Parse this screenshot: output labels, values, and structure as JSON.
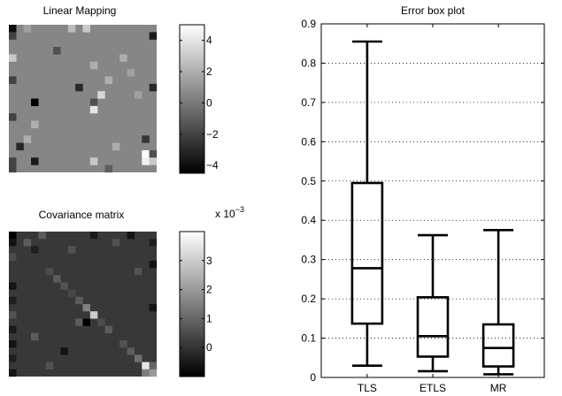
{
  "chart_data": [
    {
      "type": "heatmap",
      "title": "Linear Mapping",
      "rows": 20,
      "cols": 20,
      "vlim": [
        -4.5,
        5
      ],
      "colorbar_ticks": [
        -4,
        -2,
        0,
        2,
        4
      ],
      "colorbar_tick_labels": [
        "−4",
        "−2",
        "0",
        "2",
        "4"
      ],
      "colormap": "gray",
      "background_value": 0.5,
      "cells": [
        {
          "r": 0,
          "c": 0,
          "v": -4
        },
        {
          "r": 0,
          "c": 2,
          "v": 1.5
        },
        {
          "r": 0,
          "c": 8,
          "v": 2.5
        },
        {
          "r": 0,
          "c": 10,
          "v": 3
        },
        {
          "r": 1,
          "c": 0,
          "v": -2
        },
        {
          "r": 1,
          "c": 19,
          "v": -3.5
        },
        {
          "r": 3,
          "c": 6,
          "v": -1.5
        },
        {
          "r": 4,
          "c": 0,
          "v": 3
        },
        {
          "r": 4,
          "c": 15,
          "v": 2
        },
        {
          "r": 5,
          "c": 11,
          "v": 2
        },
        {
          "r": 6,
          "c": 16,
          "v": 1.5
        },
        {
          "r": 7,
          "c": 0,
          "v": -2
        },
        {
          "r": 7,
          "c": 13,
          "v": 2
        },
        {
          "r": 8,
          "c": 9,
          "v": -3
        },
        {
          "r": 8,
          "c": 19,
          "v": -3
        },
        {
          "r": 9,
          "c": 12,
          "v": 3.5
        },
        {
          "r": 9,
          "c": 17,
          "v": 1.5
        },
        {
          "r": 10,
          "c": 3,
          "v": -4.5
        },
        {
          "r": 10,
          "c": 11,
          "v": -1.5
        },
        {
          "r": 11,
          "c": 11,
          "v": 4
        },
        {
          "r": 12,
          "c": 0,
          "v": -2
        },
        {
          "r": 13,
          "c": 3,
          "v": 2
        },
        {
          "r": 15,
          "c": 2,
          "v": 2
        },
        {
          "r": 15,
          "c": 18,
          "v": -2.5
        },
        {
          "r": 16,
          "c": 1,
          "v": -3
        },
        {
          "r": 16,
          "c": 14,
          "v": 2
        },
        {
          "r": 17,
          "c": 18,
          "v": 5
        },
        {
          "r": 17,
          "c": 19,
          "v": -1.5
        },
        {
          "r": 18,
          "c": 0,
          "v": -2
        },
        {
          "r": 18,
          "c": 3,
          "v": -3.5
        },
        {
          "r": 18,
          "c": 11,
          "v": 3
        },
        {
          "r": 18,
          "c": 18,
          "v": 4.5
        },
        {
          "r": 18,
          "c": 19,
          "v": 3
        },
        {
          "r": 19,
          "c": 0,
          "v": -2
        },
        {
          "r": 19,
          "c": 13,
          "v": -1
        }
      ]
    },
    {
      "type": "heatmap",
      "title": "Covariance matrix",
      "rows": 20,
      "cols": 20,
      "vlim": [
        -1,
        4
      ],
      "colorbar_ticks": [
        0,
        1,
        2,
        3
      ],
      "colorbar_tick_labels": [
        "0",
        "1",
        "2",
        "3"
      ],
      "colorbar_exponent_base": "x 10",
      "colorbar_exponent": "−3",
      "colormap": "gray",
      "background_value": 0.1,
      "cells": [
        {
          "r": 0,
          "c": 0,
          "v": -1
        },
        {
          "r": 0,
          "c": 4,
          "v": 0.8
        },
        {
          "r": 0,
          "c": 11,
          "v": -0.5
        },
        {
          "r": 0,
          "c": 16,
          "v": -0.6
        },
        {
          "r": 1,
          "c": 0,
          "v": -0.6
        },
        {
          "r": 1,
          "c": 2,
          "v": 0.8
        },
        {
          "r": 1,
          "c": 14,
          "v": 0.6
        },
        {
          "r": 1,
          "c": 19,
          "v": -0.4
        },
        {
          "r": 2,
          "c": 3,
          "v": -0.4
        },
        {
          "r": 2,
          "c": 8,
          "v": 0.6
        },
        {
          "r": 3,
          "c": 0,
          "v": 0.5
        },
        {
          "r": 4,
          "c": 19,
          "v": -0.6
        },
        {
          "r": 5,
          "c": 5,
          "v": 0.5
        },
        {
          "r": 5,
          "c": 17,
          "v": 0.6
        },
        {
          "r": 6,
          "c": 6,
          "v": 0.8
        },
        {
          "r": 7,
          "c": 0,
          "v": -0.6
        },
        {
          "r": 7,
          "c": 7,
          "v": 0.6
        },
        {
          "r": 8,
          "c": 8,
          "v": 0.4
        },
        {
          "r": 9,
          "c": 0,
          "v": -0.4
        },
        {
          "r": 9,
          "c": 9,
          "v": 0.8
        },
        {
          "r": 10,
          "c": 10,
          "v": 1.5
        },
        {
          "r": 10,
          "c": 19,
          "v": -0.6
        },
        {
          "r": 11,
          "c": 0,
          "v": 0.6
        },
        {
          "r": 11,
          "c": 11,
          "v": 3
        },
        {
          "r": 12,
          "c": 9,
          "v": 0.8
        },
        {
          "r": 12,
          "c": 10,
          "v": -1
        },
        {
          "r": 12,
          "c": 12,
          "v": 0.5
        },
        {
          "r": 13,
          "c": 0,
          "v": -0.5
        },
        {
          "r": 13,
          "c": 13,
          "v": 0.8
        },
        {
          "r": 14,
          "c": 3,
          "v": 0.8
        },
        {
          "r": 15,
          "c": 0,
          "v": -0.6
        },
        {
          "r": 15,
          "c": 15,
          "v": 0.6
        },
        {
          "r": 16,
          "c": 7,
          "v": -0.6
        },
        {
          "r": 16,
          "c": 16,
          "v": 0.8
        },
        {
          "r": 17,
          "c": 0,
          "v": -0.4
        },
        {
          "r": 17,
          "c": 17,
          "v": 1.2
        },
        {
          "r": 18,
          "c": 5,
          "v": 0.6
        },
        {
          "r": 18,
          "c": 18,
          "v": 3.5
        },
        {
          "r": 18,
          "c": 19,
          "v": 1
        },
        {
          "r": 19,
          "c": 0,
          "v": -0.6
        },
        {
          "r": 19,
          "c": 18,
          "v": 1.5
        },
        {
          "r": 19,
          "c": 19,
          "v": 2
        }
      ]
    },
    {
      "type": "box",
      "title": "Error box plot",
      "ylim": [
        0,
        0.9
      ],
      "yticks": [
        0,
        0.1,
        0.2,
        0.3,
        0.4,
        0.5,
        0.6,
        0.7,
        0.8,
        0.9
      ],
      "ytick_labels": [
        "0",
        "0.1",
        "0.2",
        "0.3",
        "0.4",
        "0.5",
        "0.6",
        "0.7",
        "0.8",
        "0.9"
      ],
      "grid": "dotted",
      "categories": [
        "TLS",
        "ETLS",
        "MR"
      ],
      "boxes": [
        {
          "label": "TLS",
          "min": 0.03,
          "q1": 0.137,
          "median": 0.278,
          "q3": 0.495,
          "max": 0.855
        },
        {
          "label": "ETLS",
          "min": 0.016,
          "q1": 0.053,
          "median": 0.105,
          "q3": 0.204,
          "max": 0.362
        },
        {
          "label": "MR",
          "min": 0.008,
          "q1": 0.028,
          "median": 0.075,
          "q3": 0.135,
          "max": 0.375
        }
      ]
    }
  ]
}
